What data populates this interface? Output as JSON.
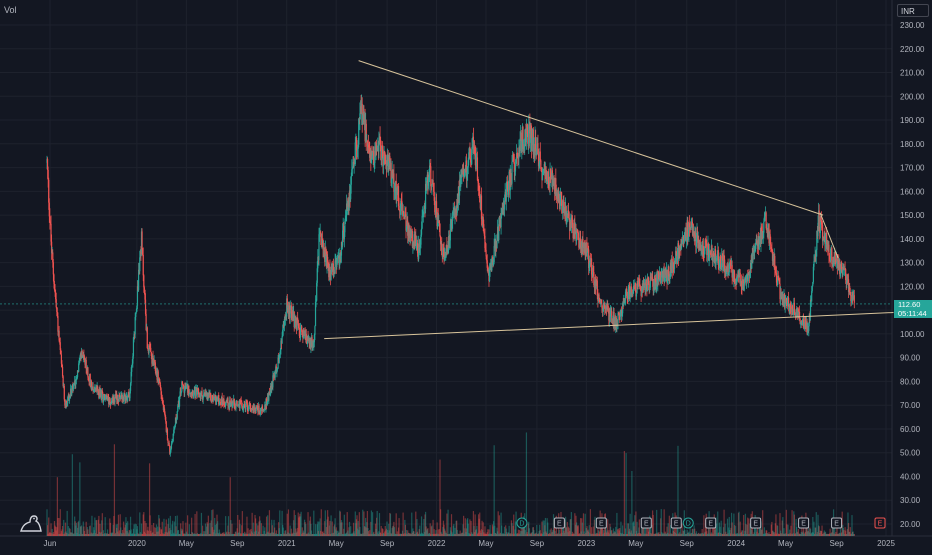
{
  "header": {
    "volume_label": "Vol",
    "currency": "INR"
  },
  "current_price": {
    "price": "112.60",
    "countdown": "05:11:44",
    "color": "#26a69a"
  },
  "colors": {
    "background": "#131722",
    "up": "#26a69a",
    "down": "#ef5350",
    "grid": "#1e222d",
    "trendline": "#d8c49b",
    "axis_text": "#b2b5be"
  },
  "chart_data": {
    "type": "candlestick",
    "ylim": [
      15,
      235
    ],
    "y_ticks": [
      20,
      30,
      40,
      50,
      60,
      70,
      80,
      90,
      100,
      110,
      120,
      130,
      140,
      150,
      160,
      170,
      180,
      190,
      200,
      210,
      220,
      230
    ],
    "x_ticks": [
      {
        "label": "Jun",
        "t": 2019.42
      },
      {
        "label": "2020",
        "t": 2020.0
      },
      {
        "label": "May",
        "t": 2020.33
      },
      {
        "label": "Sep",
        "t": 2020.67
      },
      {
        "label": "2021",
        "t": 2021.0
      },
      {
        "label": "May",
        "t": 2021.33
      },
      {
        "label": "Sep",
        "t": 2021.67
      },
      {
        "label": "2022",
        "t": 2022.0
      },
      {
        "label": "May",
        "t": 2022.33
      },
      {
        "label": "Sep",
        "t": 2022.67
      },
      {
        "label": "2023",
        "t": 2023.0
      },
      {
        "label": "May",
        "t": 2023.33
      },
      {
        "label": "Sep",
        "t": 2023.67
      },
      {
        "label": "2024",
        "t": 2024.0
      },
      {
        "label": "May",
        "t": 2024.33
      },
      {
        "label": "Sep",
        "t": 2024.67
      },
      {
        "label": "2025",
        "t": 2025.0
      }
    ],
    "price_path": [
      {
        "t": 2019.4,
        "p": 172
      },
      {
        "t": 2019.43,
        "p": 135
      },
      {
        "t": 2019.47,
        "p": 105
      },
      {
        "t": 2019.52,
        "p": 70
      },
      {
        "t": 2019.58,
        "p": 78
      },
      {
        "t": 2019.63,
        "p": 92
      },
      {
        "t": 2019.7,
        "p": 78
      },
      {
        "t": 2019.8,
        "p": 72
      },
      {
        "t": 2019.95,
        "p": 74
      },
      {
        "t": 2020.03,
        "p": 140
      },
      {
        "t": 2020.07,
        "p": 95
      },
      {
        "t": 2020.15,
        "p": 80
      },
      {
        "t": 2020.22,
        "p": 50
      },
      {
        "t": 2020.3,
        "p": 78
      },
      {
        "t": 2020.4,
        "p": 75
      },
      {
        "t": 2020.55,
        "p": 72
      },
      {
        "t": 2020.7,
        "p": 70
      },
      {
        "t": 2020.85,
        "p": 68
      },
      {
        "t": 2020.95,
        "p": 90
      },
      {
        "t": 2021.0,
        "p": 112
      },
      {
        "t": 2021.1,
        "p": 100
      },
      {
        "t": 2021.18,
        "p": 95
      },
      {
        "t": 2021.22,
        "p": 145
      },
      {
        "t": 2021.28,
        "p": 125
      },
      {
        "t": 2021.35,
        "p": 130
      },
      {
        "t": 2021.42,
        "p": 160
      },
      {
        "t": 2021.5,
        "p": 195
      },
      {
        "t": 2021.55,
        "p": 175
      },
      {
        "t": 2021.62,
        "p": 178
      },
      {
        "t": 2021.7,
        "p": 168
      },
      {
        "t": 2021.8,
        "p": 145
      },
      {
        "t": 2021.88,
        "p": 135
      },
      {
        "t": 2021.95,
        "p": 170
      },
      {
        "t": 2022.05,
        "p": 130
      },
      {
        "t": 2022.15,
        "p": 160
      },
      {
        "t": 2022.25,
        "p": 180
      },
      {
        "t": 2022.35,
        "p": 125
      },
      {
        "t": 2022.45,
        "p": 155
      },
      {
        "t": 2022.55,
        "p": 180
      },
      {
        "t": 2022.62,
        "p": 185
      },
      {
        "t": 2022.7,
        "p": 170
      },
      {
        "t": 2022.78,
        "p": 165
      },
      {
        "t": 2022.9,
        "p": 145
      },
      {
        "t": 2023.0,
        "p": 135
      },
      {
        "t": 2023.1,
        "p": 112
      },
      {
        "t": 2023.2,
        "p": 105
      },
      {
        "t": 2023.28,
        "p": 118
      },
      {
        "t": 2023.4,
        "p": 120
      },
      {
        "t": 2023.55,
        "p": 125
      },
      {
        "t": 2023.68,
        "p": 145
      },
      {
        "t": 2023.8,
        "p": 135
      },
      {
        "t": 2023.95,
        "p": 128
      },
      {
        "t": 2024.05,
        "p": 120
      },
      {
        "t": 2024.2,
        "p": 148
      },
      {
        "t": 2024.3,
        "p": 115
      },
      {
        "t": 2024.4,
        "p": 110
      },
      {
        "t": 2024.48,
        "p": 102
      },
      {
        "t": 2024.55,
        "p": 148
      },
      {
        "t": 2024.62,
        "p": 135
      },
      {
        "t": 2024.72,
        "p": 125
      },
      {
        "t": 2024.79,
        "p": 112.6
      }
    ],
    "trendlines": [
      {
        "start": {
          "t": 2021.48,
          "p": 215
        },
        "end": {
          "t": 2024.58,
          "p": 150
        }
      },
      {
        "start": {
          "t": 2021.25,
          "p": 98
        },
        "end": {
          "t": 2025.05,
          "p": 109
        }
      },
      {
        "start": {
          "t": 2024.56,
          "p": 151
        },
        "end": {
          "t": 2024.68,
          "p": 132
        }
      }
    ],
    "event_markers": [
      {
        "label": "D",
        "t": 2022.57,
        "kind": "dividend"
      },
      {
        "label": "E",
        "t": 2022.82,
        "kind": "earnings"
      },
      {
        "label": "E",
        "t": 2023.1,
        "kind": "earnings"
      },
      {
        "label": "E",
        "t": 2023.4,
        "kind": "earnings"
      },
      {
        "label": "E",
        "t": 2023.6,
        "kind": "earnings"
      },
      {
        "label": "D",
        "t": 2023.68,
        "kind": "dividend"
      },
      {
        "label": "E",
        "t": 2023.83,
        "kind": "earnings"
      },
      {
        "label": "E",
        "t": 2024.13,
        "kind": "earnings"
      },
      {
        "label": "E",
        "t": 2024.45,
        "kind": "earnings"
      },
      {
        "label": "E",
        "t": 2024.67,
        "kind": "earnings"
      },
      {
        "label": "E",
        "t": 2024.96,
        "kind": "earnings-upcoming"
      }
    ]
  }
}
